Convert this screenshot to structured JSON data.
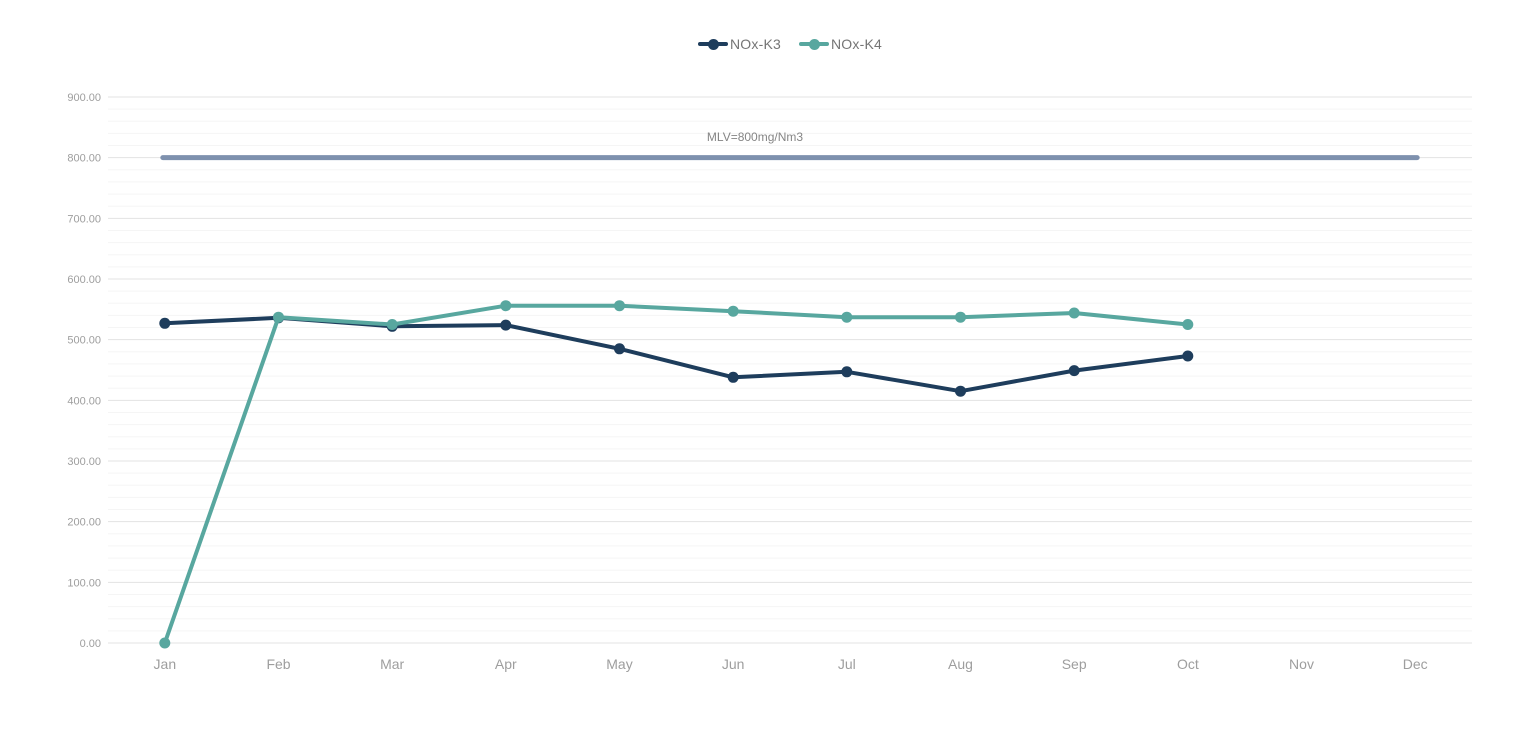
{
  "chart_data": {
    "type": "line",
    "title": "",
    "categories": [
      "Jan",
      "Feb",
      "Mar",
      "Apr",
      "May",
      "Jun",
      "Jul",
      "Aug",
      "Sep",
      "Oct",
      "Nov",
      "Dec"
    ],
    "series": [
      {
        "name": "NOx-K3",
        "color": "#1e3d5c",
        "values": [
          527,
          536,
          522,
          524,
          485,
          438,
          447,
          415,
          449,
          473,
          null,
          null
        ]
      },
      {
        "name": "NOx-K4",
        "color": "#58a79f",
        "values": [
          0,
          537,
          525,
          556,
          556,
          547,
          537,
          537,
          544,
          525,
          null,
          null
        ]
      }
    ],
    "reference_line": {
      "label": "MLV=800mg/Nm3",
      "value": 800,
      "color": "#7e91ae"
    },
    "y_axis": {
      "min": 0,
      "max": 900,
      "major_step": 100,
      "minor_step": 20,
      "tick_labels": [
        "0.00",
        "100.00",
        "200.00",
        "300.00",
        "400.00",
        "500.00",
        "600.00",
        "700.00",
        "800.00",
        "900.00"
      ]
    },
    "x_axis": {
      "label": ""
    },
    "legend_position": "top",
    "grid": true,
    "grid_major_color": "#e3e3e3",
    "grid_minor_color": "#f5f5f5",
    "axis_label_color": "#9e9e9e"
  }
}
